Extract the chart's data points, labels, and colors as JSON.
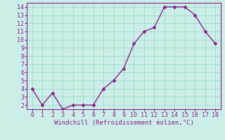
{
  "x": [
    0,
    1,
    2,
    3,
    4,
    5,
    6,
    7,
    8,
    9,
    10,
    11,
    12,
    13,
    14,
    15,
    16,
    17,
    18
  ],
  "y": [
    4.0,
    2.0,
    3.5,
    1.5,
    2.0,
    2.0,
    2.0,
    4.0,
    5.0,
    6.5,
    9.5,
    11.0,
    11.5,
    14.0,
    14.0,
    14.0,
    13.0,
    11.0,
    9.5
  ],
  "line_color": "#882288",
  "marker": "D",
  "marker_size": 2,
  "xlabel": "Windchill (Refroidissement éolien,°C)",
  "xlim": [
    -0.5,
    18.5
  ],
  "ylim": [
    1.5,
    14.5
  ],
  "yticks": [
    2,
    3,
    4,
    5,
    6,
    7,
    8,
    9,
    10,
    11,
    12,
    13,
    14
  ],
  "xticks": [
    0,
    1,
    2,
    3,
    4,
    5,
    6,
    7,
    8,
    9,
    10,
    11,
    12,
    13,
    14,
    15,
    16,
    17,
    18
  ],
  "bg_color": "#cceee8",
  "grid_color": "#99ddcc",
  "axis_color": "#882288",
  "tick_color": "#882288",
  "label_color": "#882288",
  "label_fontsize": 6.5,
  "tick_fontsize": 6
}
